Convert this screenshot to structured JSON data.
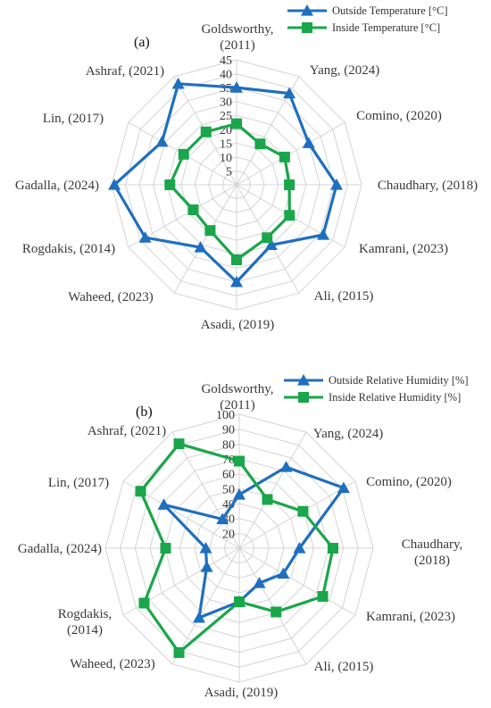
{
  "chart_data": [
    {
      "type": "radar",
      "panel_label": "(a)",
      "categories": [
        [
          "Goldsworthy,",
          "(2011)"
        ],
        [
          "Yang, (2024)"
        ],
        [
          "Comino, (2020)"
        ],
        [
          "Chaudhary, (2018)"
        ],
        [
          "Kamrani, (2023)"
        ],
        [
          "Ali, (2015)"
        ],
        [
          "Asadi, (2019)"
        ],
        [
          "Waheed, (2023)"
        ],
        [
          "Rogdakis, (2014)"
        ],
        [
          "Gadalla, (2024)"
        ],
        [
          "Lin, (2017)"
        ],
        [
          "Ashraf, (2021)"
        ]
      ],
      "rlim": [
        0,
        45
      ],
      "ticks": [
        "5",
        "10",
        "15",
        "20",
        "25",
        "30",
        "35",
        "40",
        "45"
      ],
      "series": [
        {
          "name": "Outside Temperature [°C]",
          "color": "#1f6fbf",
          "marker": "triangle",
          "values": [
            35,
            38,
            30,
            36,
            36,
            25,
            35,
            26,
            38,
            44,
            31,
            42
          ]
        },
        {
          "name": "Inside Temperature [°C]",
          "color": "#1aa64a",
          "marker": "square",
          "values": [
            22,
            17,
            20,
            19,
            22,
            22,
            27,
            19,
            18,
            24,
            22,
            22
          ]
        }
      ],
      "legend_position": "top-right"
    },
    {
      "type": "radar",
      "panel_label": "(b)",
      "categories": [
        [
          "Goldsworthy,",
          "(2011)"
        ],
        [
          "Yang, (2024)"
        ],
        [
          "Comino, (2020)"
        ],
        [
          "Chaudhary,",
          "(2018)"
        ],
        [
          "Kamrani, (2023)"
        ],
        [
          "Ali, (2015)"
        ],
        [
          "Asadi, (2019)"
        ],
        [
          "Waheed, (2023)"
        ],
        [
          "Rogdakis,",
          "(2014)"
        ],
        [
          "Gadalla, (2024)"
        ],
        [
          "Lin, (2017)"
        ],
        [
          "Ashraf, (2021)"
        ]
      ],
      "rlim": [
        0,
        100
      ],
      "ticks": [
        "20",
        "30",
        "40",
        "50",
        "60",
        "70",
        "80",
        "90",
        "100"
      ],
      "series": [
        {
          "name": "Outside Relative Humidity [%]",
          "color": "#1f6fbf",
          "marker": "triangle",
          "values": [
            40,
            70,
            90,
            45,
            38,
            30,
            40,
            60,
            28,
            25,
            65,
            25
          ]
        },
        {
          "name": "Inside Relative Humidity [%]",
          "color": "#1aa64a",
          "marker": "square",
          "values": [
            65,
            42,
            55,
            70,
            72,
            55,
            40,
            90,
            82,
            55,
            85,
            90
          ]
        }
      ],
      "legend_position": "top-right"
    }
  ]
}
